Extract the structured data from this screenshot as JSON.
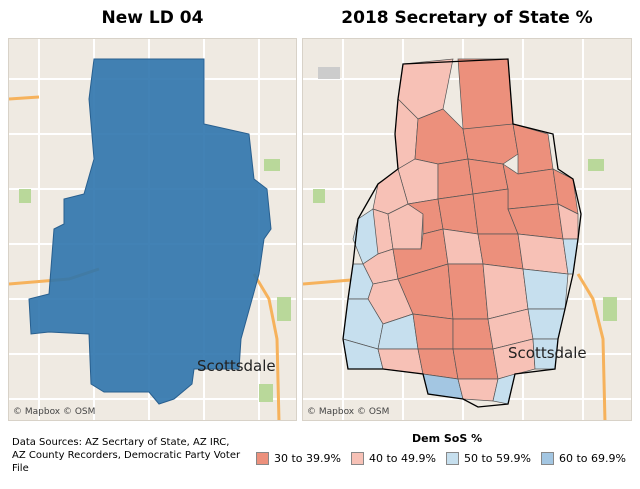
{
  "left_map": {
    "title": "New LD 04",
    "city_label": "Scottsdale",
    "attribution": "© Mapbox © OSM",
    "district_color": "#2e74ad"
  },
  "right_map": {
    "title": "2018 Secretary of State %",
    "city_label": "Scottsdale",
    "attribution": "© Mapbox © OSM"
  },
  "sources": "Data Sources: AZ Secrtary of State, AZ IRC, AZ County Recorders, Democratic Party Voter File",
  "legend": {
    "title": "Dem SoS %",
    "items": [
      {
        "label": "30 to 39.9%",
        "color": "#ec907c"
      },
      {
        "label": "40 to 49.9%",
        "color": "#f7c1b6"
      },
      {
        "label": "50 to 59.9%",
        "color": "#c6dfee"
      },
      {
        "label": "60 to 69.9%",
        "color": "#a3c6e2"
      }
    ]
  },
  "colors": {
    "map_background": "#efeae2",
    "road_major": "#f6b25c",
    "road_minor": "#ffffff",
    "park": "#b9d89a",
    "water": "#a9c9e8"
  }
}
